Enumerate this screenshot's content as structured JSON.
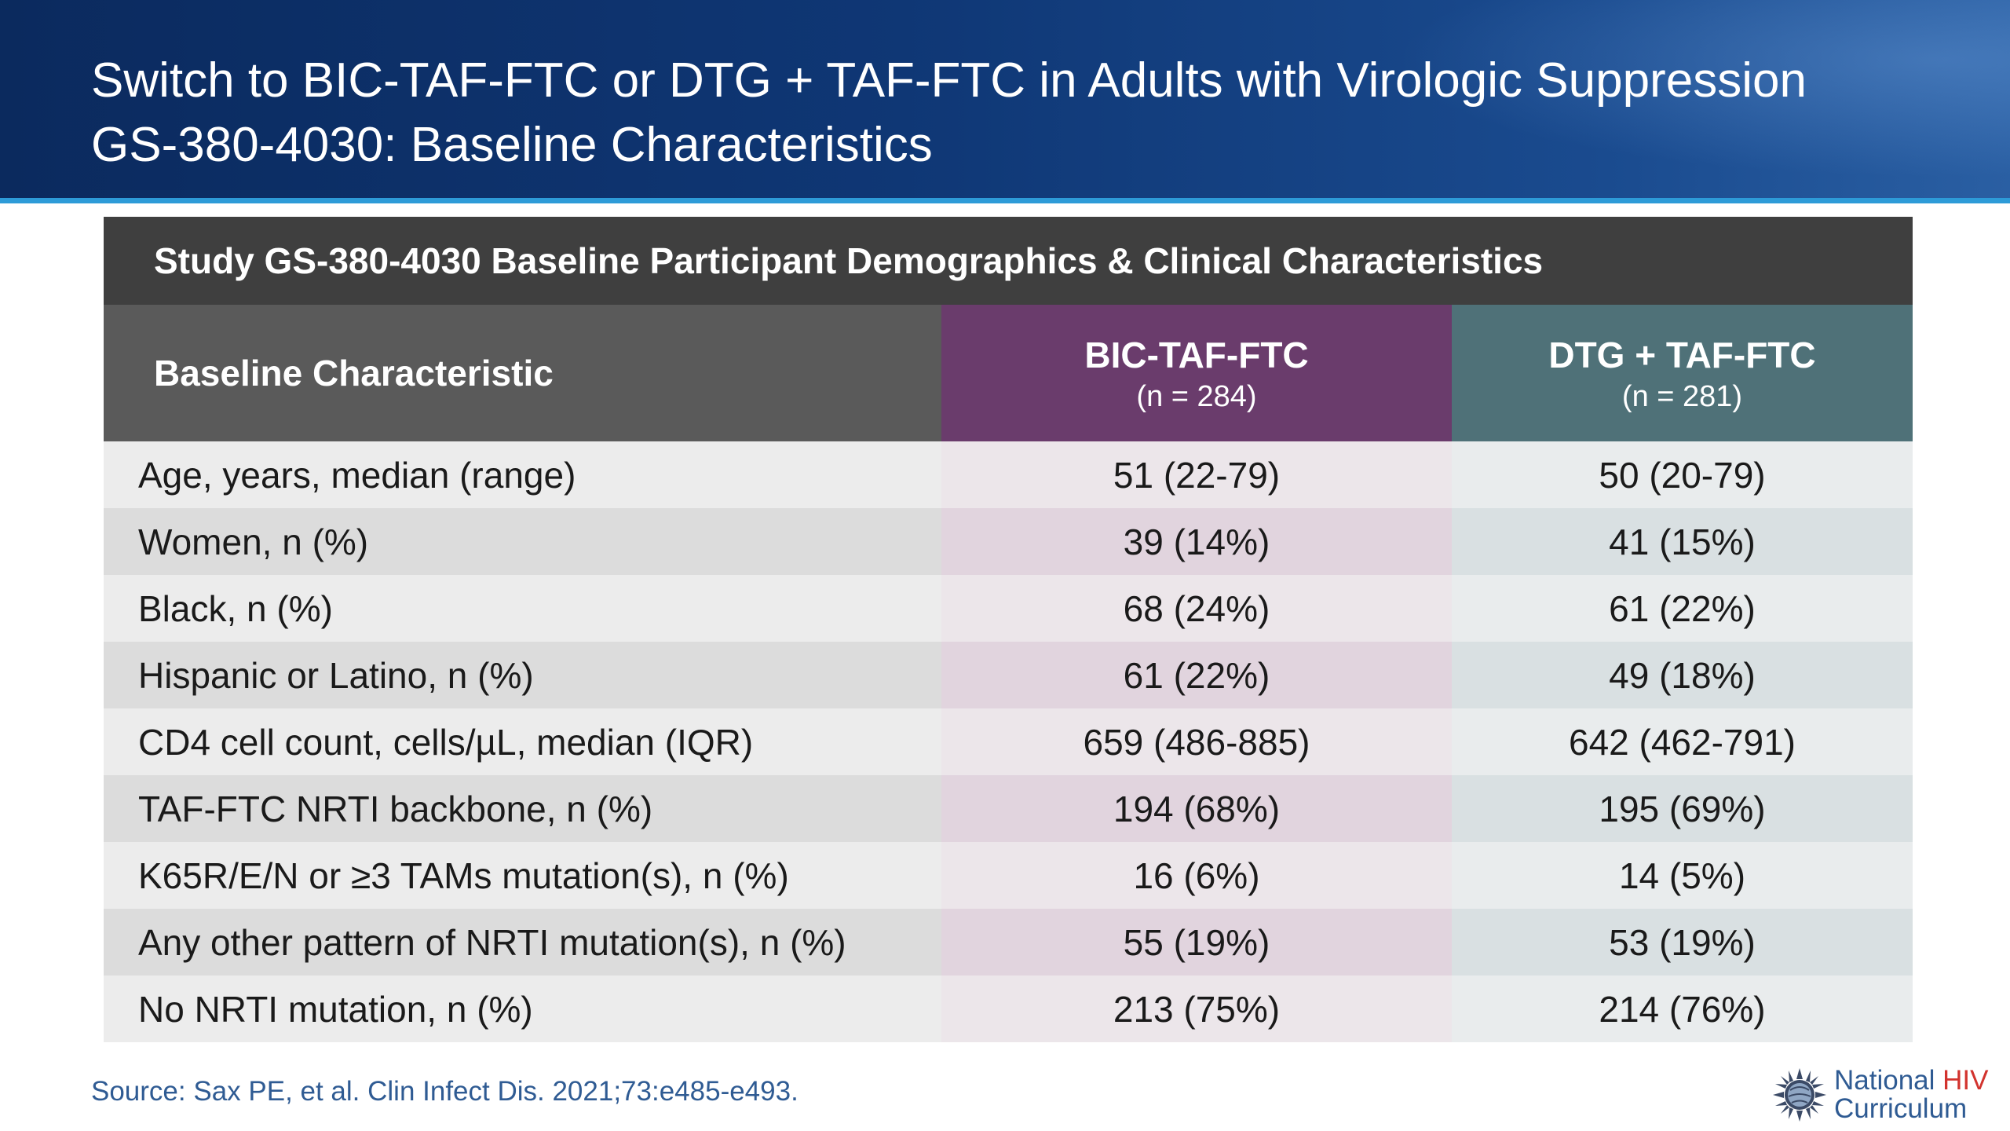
{
  "slide": {
    "title_line1": "Switch to BIC-TAF-FTC or DTG + TAF-FTC in Adults with Virologic Suppression",
    "title_line2": "GS-380-4030: Baseline Characteristics"
  },
  "table": {
    "caption": "Study GS-380-4030 Baseline Participant Demographics & Clinical Characteristics",
    "header": {
      "characteristic": "Baseline Characteristic",
      "arm_a_name": "BIC-TAF-FTC",
      "arm_a_n": "(n = 284)",
      "arm_b_name": "DTG + TAF-FTC",
      "arm_b_n": "(n = 281)"
    },
    "rows": [
      {
        "label": "Age, years, median (range)",
        "a": "51 (22-79)",
        "b": "50 (20-79)"
      },
      {
        "label": "Women, n (%)",
        "a": "39 (14%)",
        "b": "41 (15%)"
      },
      {
        "label": "Black, n (%)",
        "a": "68 (24%)",
        "b": "61 (22%)"
      },
      {
        "label": "Hispanic or Latino, n (%)",
        "a": "61 (22%)",
        "b": "49 (18%)"
      },
      {
        "label": "CD4 cell count, cells/µL, median (IQR)",
        "a": "659 (486-885)",
        "b": "642 (462-791)"
      },
      {
        "label": "TAF-FTC NRTI backbone, n (%)",
        "a": "194 (68%)",
        "b": "195 (69%)"
      },
      {
        "label": "K65R/E/N or ≥3 TAMs mutation(s), n (%)",
        "a": "16 (6%)",
        "b": "14 (5%)"
      },
      {
        "label": "Any other pattern of NRTI mutation(s), n (%)",
        "a": "55 (19%)",
        "b": "53 (19%)"
      },
      {
        "label": "No NRTI mutation, n (%)",
        "a": "213 (75%)",
        "b": "214 (76%)"
      }
    ]
  },
  "footer": {
    "source": "Source: Sax PE, et al. Clin Infect Dis. 2021;73:e485-e493.",
    "logo_line1_a": "National ",
    "logo_line1_b": "HIV",
    "logo_line2": "Curriculum",
    "logo_icon": "sun-globe-icon"
  },
  "colors": {
    "arm_a": "#6a3c6c",
    "arm_b": "#4f7178",
    "header_blue": "#0f3775",
    "accent_rule": "#2d9bd8"
  }
}
